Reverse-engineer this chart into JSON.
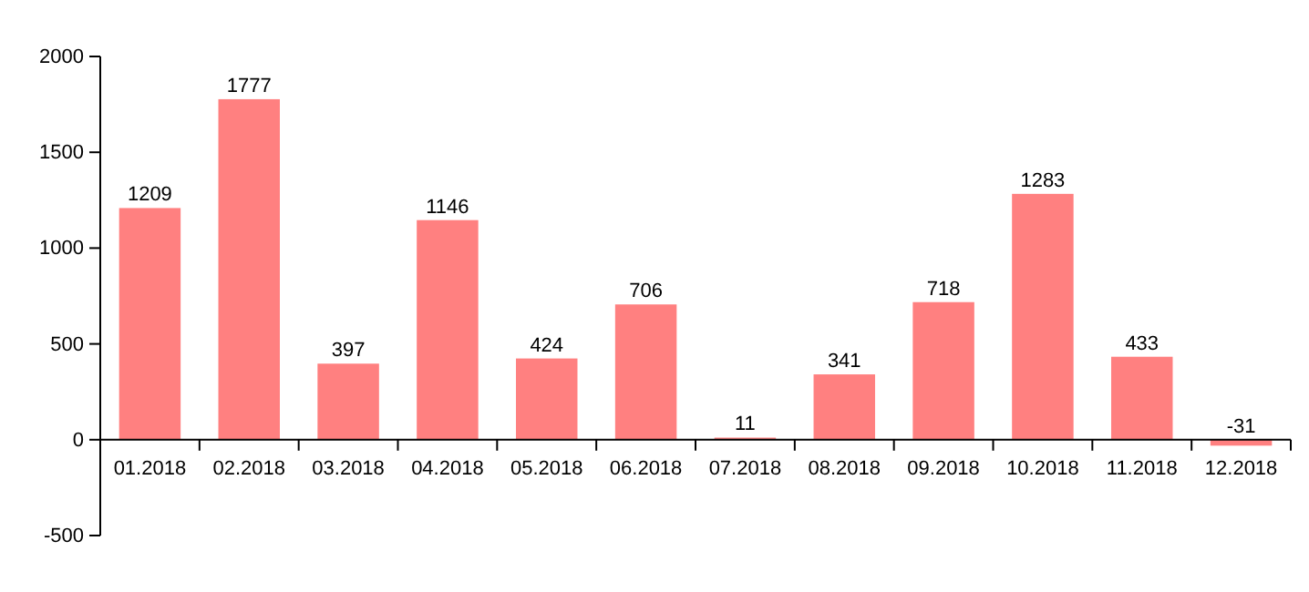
{
  "chart_data": {
    "type": "bar",
    "categories": [
      "01.2018",
      "02.2018",
      "03.2018",
      "04.2018",
      "05.2018",
      "06.2018",
      "07.2018",
      "08.2018",
      "09.2018",
      "10.2018",
      "11.2018",
      "12.2018"
    ],
    "values": [
      1209,
      1777,
      397,
      1146,
      424,
      706,
      11,
      341,
      718,
      1283,
      433,
      -31
    ],
    "color": "#ff8080",
    "ylim": [
      -500,
      2000
    ],
    "yticks": [
      -500,
      0,
      500,
      1000,
      1500,
      2000
    ],
    "data_labels": true
  }
}
